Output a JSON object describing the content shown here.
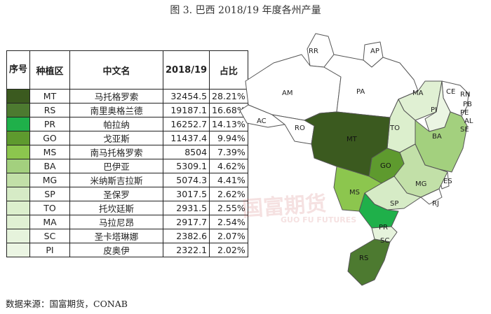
{
  "title": "图 3. 巴西 2018/19 年度各州产量",
  "source": "数据来源：国富期货，CONAB",
  "watermark": {
    "cn": "国富期货",
    "en": "GUO FU FUTURES"
  },
  "chart_data": {
    "type": "table",
    "columns": [
      "序号",
      "种植区",
      "中文名",
      "2018/19",
      "占比"
    ],
    "rows": [
      {
        "code": "MT",
        "name": "马托格罗索",
        "value": "32454.5",
        "share": "28.21%",
        "color": "#3b5a1f"
      },
      {
        "code": "RS",
        "name": "南里奥格兰德",
        "value": "19187.1",
        "share": "16.68%",
        "color": "#4d7a30"
      },
      {
        "code": "PR",
        "name": "帕拉纳",
        "value": "16252.7",
        "share": "14.13%",
        "color": "#1fb04a"
      },
      {
        "code": "GO",
        "name": "戈亚斯",
        "value": "11437.4",
        "share": "9.94%",
        "color": "#5e9a2e"
      },
      {
        "code": "MS",
        "name": "南马托格罗索",
        "value": "8504",
        "share": "7.39%",
        "color": "#8cc64e"
      },
      {
        "code": "BA",
        "name": "巴伊亚",
        "value": "5309.1",
        "share": "4.62%",
        "color": "#a3d07e"
      },
      {
        "code": "MG",
        "name": "米纳斯吉拉斯",
        "value": "5074.3",
        "share": "4.41%",
        "color": "#c2e0a8"
      },
      {
        "code": "SP",
        "name": "圣保罗",
        "value": "3017.5",
        "share": "2.62%",
        "color": "#d6ebc6"
      },
      {
        "code": "TO",
        "name": "托坎廷斯",
        "value": "2931.5",
        "share": "2.55%",
        "color": "#dcefcd"
      },
      {
        "code": "MA",
        "name": "马拉尼昂",
        "value": "2917.7",
        "share": "2.54%",
        "color": "#e0f0d3"
      },
      {
        "code": "SC",
        "name": "圣卡塔琳娜",
        "value": "2382.6",
        "share": "2.07%",
        "color": "#e6f3dc"
      },
      {
        "code": "PI",
        "name": "皮奥伊",
        "value": "2322.1",
        "share": "2.02%",
        "color": "#ebf5e3"
      }
    ],
    "map_labels": [
      "RR",
      "AP",
      "AM",
      "PA",
      "MA",
      "CE",
      "RN",
      "PB",
      "PE",
      "AL",
      "SE",
      "PI",
      "AC",
      "RO",
      "TO",
      "BA",
      "MT",
      "GO",
      "MG",
      "ES",
      "MS",
      "SP",
      "RJ",
      "PR",
      "SC",
      "RS"
    ]
  }
}
